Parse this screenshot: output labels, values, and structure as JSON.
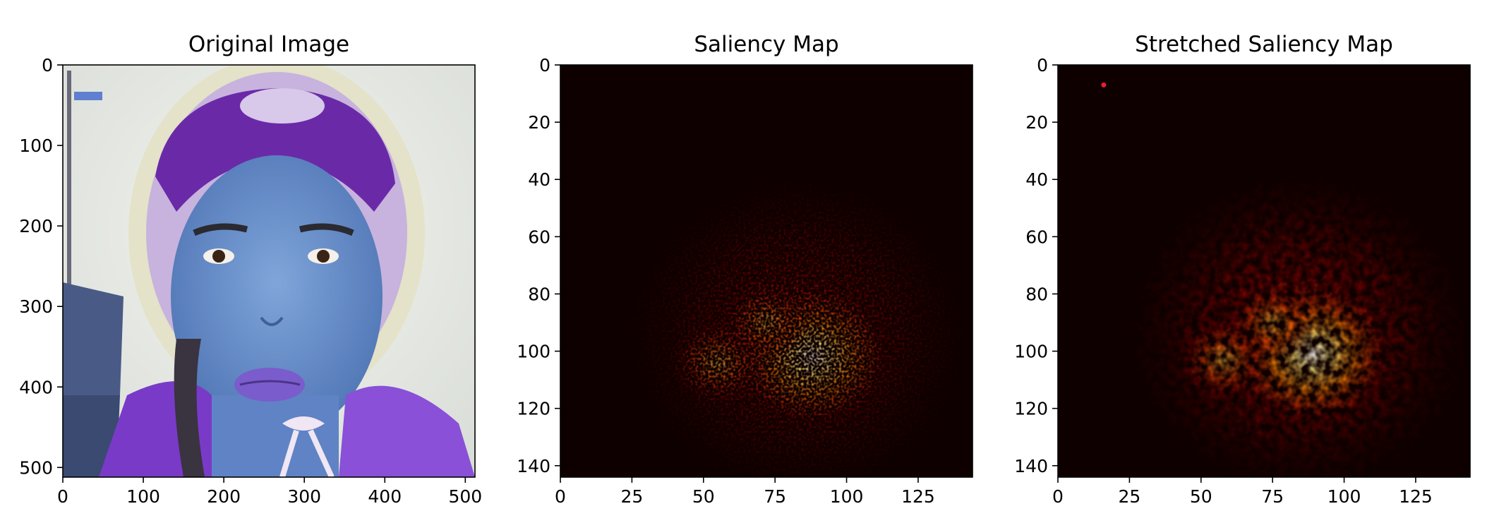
{
  "figure": {
    "panels": [
      {
        "key": "original",
        "title": "Original Image"
      },
      {
        "key": "saliency",
        "title": "Saliency Map"
      },
      {
        "key": "stretched",
        "title": "Stretched Saliency Map"
      }
    ]
  },
  "chart_data": [
    {
      "type": "heatmap",
      "title": "Original Image",
      "content": "photograph of a woman with blue-tinted skin wearing a purple knitted band and lace bonnet, purple lips, braids; a ship with sails on the left",
      "xlim": [
        0,
        512
      ],
      "ylim": [
        512,
        0
      ],
      "xticks": [
        0,
        100,
        200,
        300,
        400,
        500
      ],
      "yticks": [
        0,
        100,
        200,
        300,
        400,
        500
      ],
      "grid": false
    },
    {
      "type": "heatmap",
      "title": "Saliency Map",
      "colormap": "hot",
      "xlim": [
        0,
        144
      ],
      "ylim": [
        144,
        0
      ],
      "xticks": [
        0,
        25,
        50,
        75,
        100,
        125
      ],
      "yticks": [
        0,
        20,
        40,
        60,
        80,
        100,
        120,
        140
      ],
      "grid": false,
      "hotspots": [
        {
          "x": 88,
          "y": 102,
          "intensity": 1.0
        },
        {
          "x": 55,
          "y": 104,
          "intensity": 0.75
        },
        {
          "x": 72,
          "y": 90,
          "intensity": 0.6
        }
      ],
      "style": "noisy"
    },
    {
      "type": "heatmap",
      "title": "Stretched Saliency Map",
      "colormap": "hot",
      "xlim": [
        0,
        144
      ],
      "ylim": [
        144,
        0
      ],
      "xticks": [
        0,
        25,
        50,
        75,
        100,
        125
      ],
      "yticks": [
        0,
        20,
        40,
        60,
        80,
        100,
        120,
        140
      ],
      "grid": false,
      "hotspots": [
        {
          "x": 89,
          "y": 101,
          "intensity": 1.0
        },
        {
          "x": 58,
          "y": 103,
          "intensity": 0.7
        },
        {
          "x": 75,
          "y": 90,
          "intensity": 0.6
        }
      ],
      "marker": {
        "x": 16,
        "y": 7,
        "color": "#e8202a"
      },
      "style": "smooth"
    }
  ]
}
